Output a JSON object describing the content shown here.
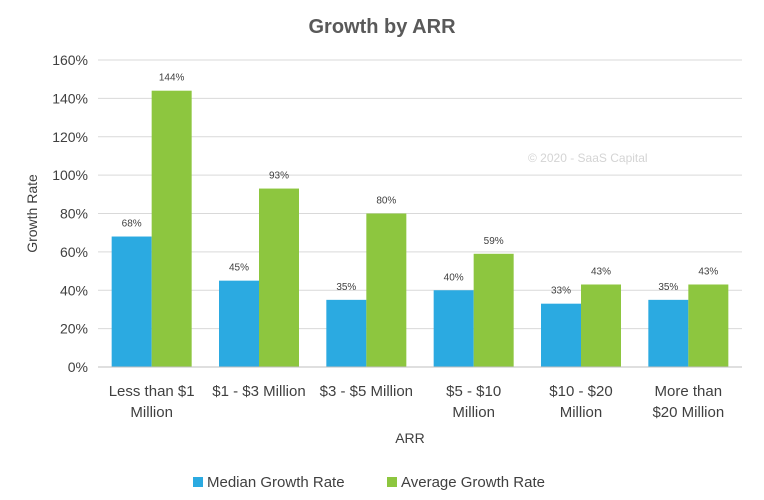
{
  "chart_data": {
    "type": "bar",
    "title": "Growth by ARR",
    "xlabel": "ARR",
    "ylabel": "Growth Rate",
    "ylim": [
      0,
      160
    ],
    "yticks": [
      "0%",
      "20%",
      "40%",
      "60%",
      "80%",
      "100%",
      "120%",
      "140%",
      "160%"
    ],
    "categories": [
      [
        "Less than $1",
        "Million"
      ],
      [
        "$1 - $3 Million"
      ],
      [
        "$3 - $5 Million"
      ],
      [
        "$5 - $10",
        "Million"
      ],
      [
        "$10 - $20",
        "Million"
      ],
      [
        "More than",
        "$20 Million"
      ]
    ],
    "series": [
      {
        "name": "Median Growth Rate",
        "color": "#2baae1",
        "values": [
          68,
          45,
          35,
          40,
          33,
          35
        ],
        "labels": [
          "68%",
          "45%",
          "35%",
          "40%",
          "33%",
          "35%"
        ]
      },
      {
        "name": "Average Growth Rate",
        "color": "#8dc63f",
        "values": [
          144,
          93,
          80,
          59,
          43,
          43
        ],
        "labels": [
          "144%",
          "93%",
          "80%",
          "59%",
          "43%",
          "43%"
        ]
      }
    ],
    "grid": true,
    "legend_position": "bottom",
    "watermark": "© 2020 - SaaS Capital"
  }
}
